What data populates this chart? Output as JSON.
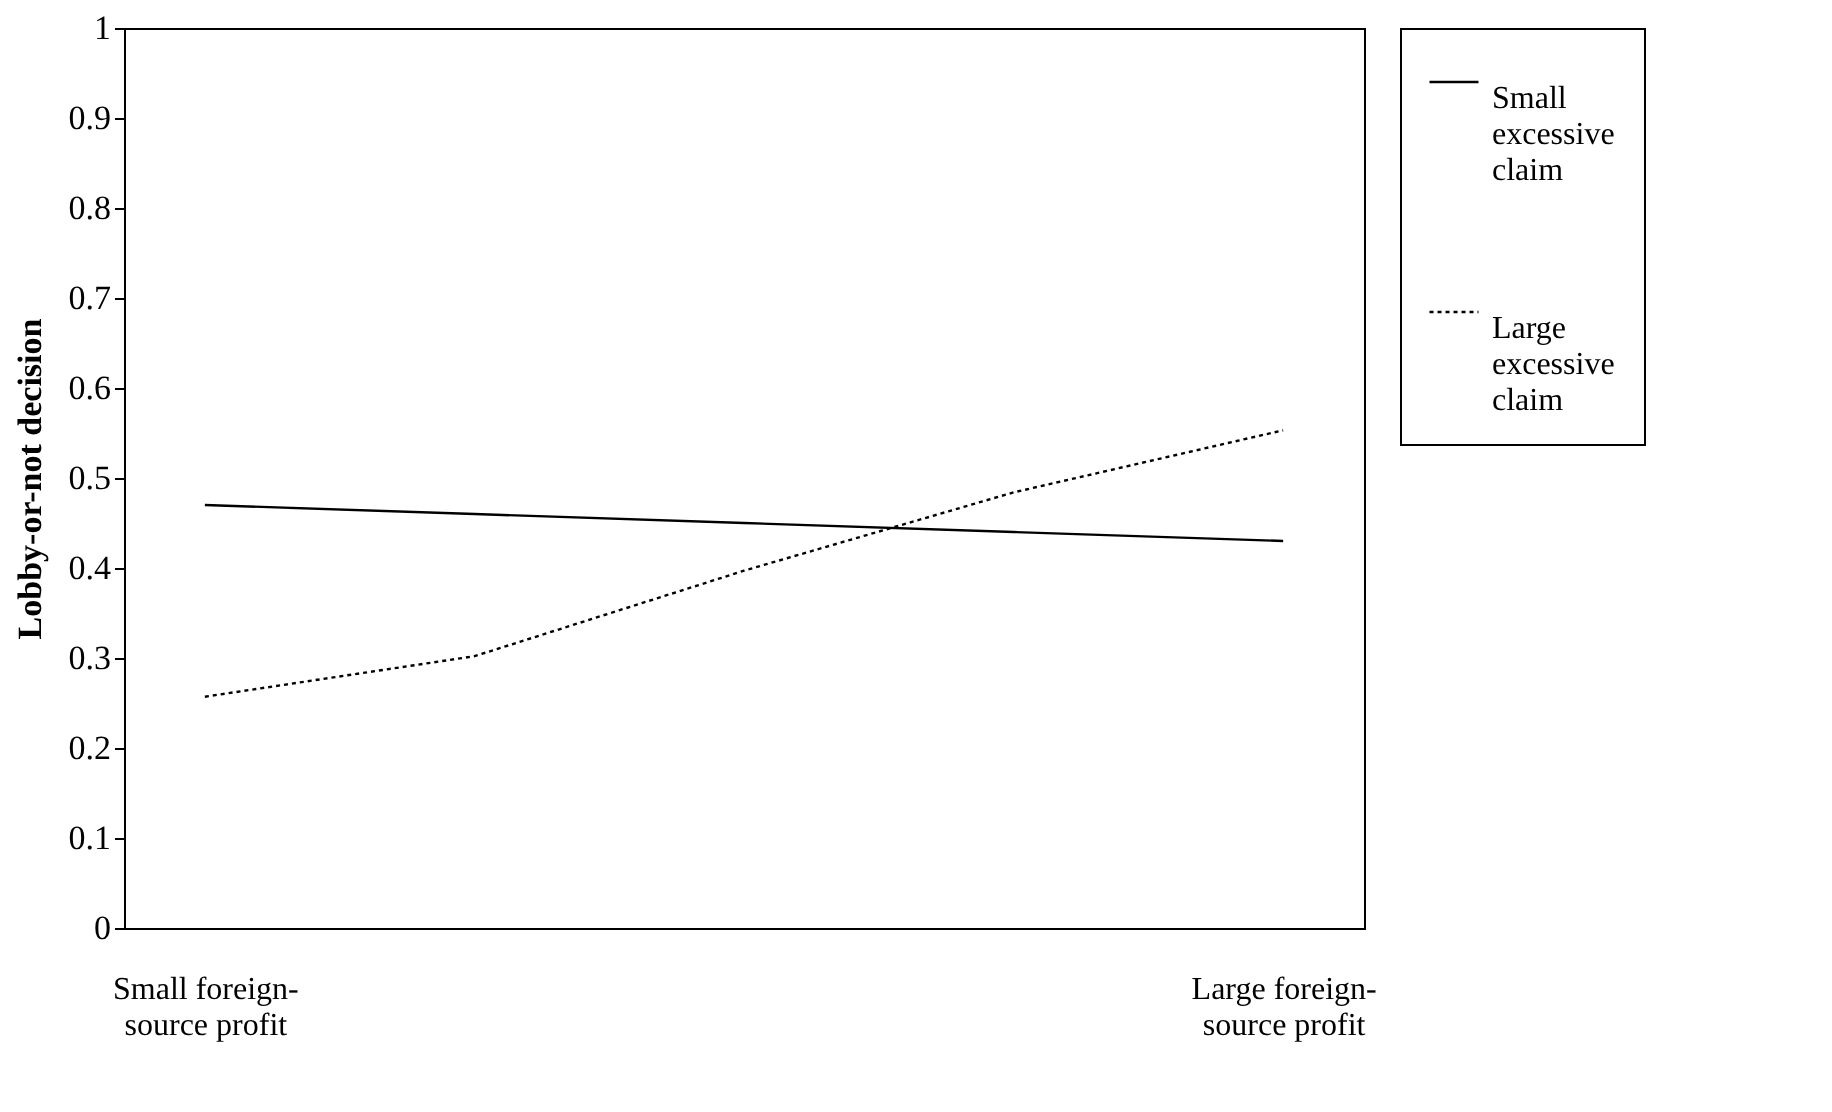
{
  "chart_data": {
    "type": "line",
    "ylabel": "Lobby-or-not  decision",
    "categories": [
      "Small foreign-source profit",
      null,
      null,
      null,
      "Large foreign-source profit"
    ],
    "series": [
      {
        "name": "Small excessive claim",
        "color": "#000000",
        "line_style": "solid",
        "values": [
          0.47,
          0.46,
          0.45,
          0.44,
          0.43
        ]
      },
      {
        "name": "Large excessive claim",
        "color": "#000000",
        "line_style": "dotted",
        "values": [
          0.257,
          0.302,
          0.397,
          0.484,
          0.553
        ]
      }
    ],
    "ylim": [
      0,
      1
    ],
    "yticks": [
      0,
      0.1,
      0.2,
      0.3,
      0.4,
      0.5,
      0.6,
      0.7,
      0.8,
      0.9,
      1
    ],
    "grid": false,
    "legend": "right",
    "marker": "none"
  }
}
